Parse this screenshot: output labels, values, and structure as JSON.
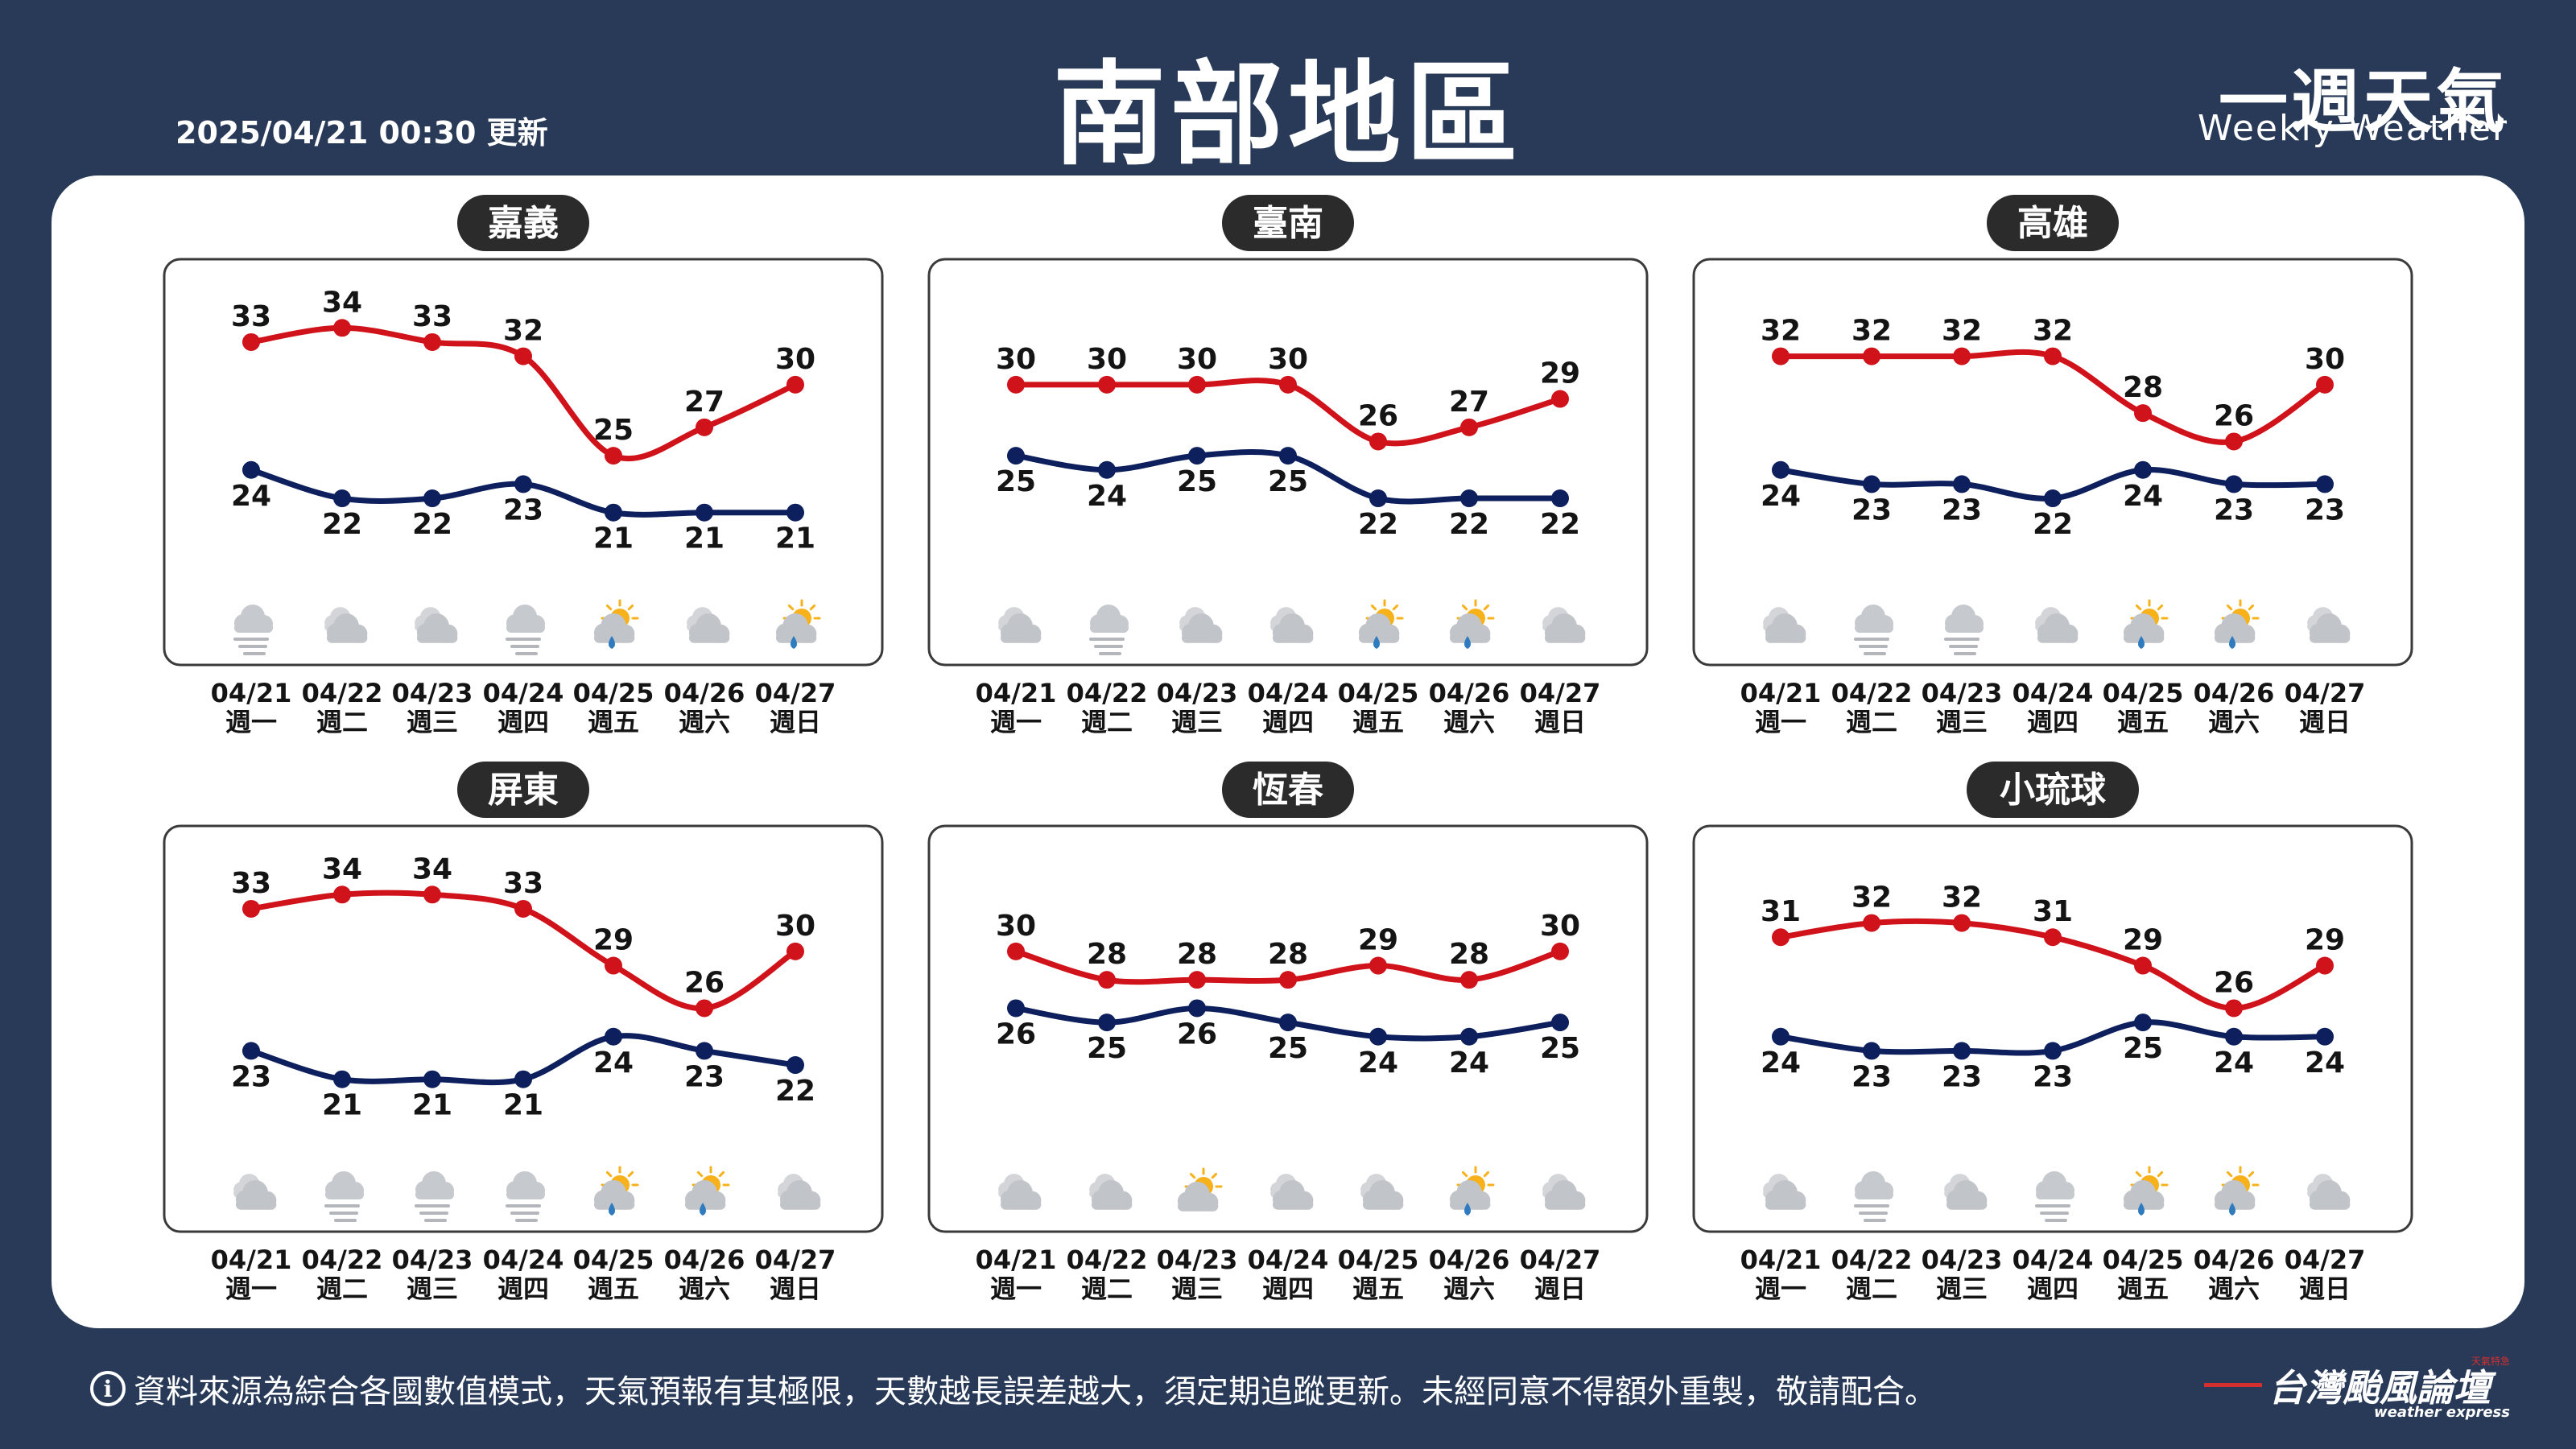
{
  "header": {
    "title": "南部地區",
    "update_time": "2025/04/21 00:30 更新",
    "brand_zh": "一週天氣",
    "brand_en": "Weekly Weather"
  },
  "footer": {
    "note": "資料來源為綜合各國數值模式，天氣預報有其極限，天數越長誤差越大，須定期追蹤更新。未經同意不得額外重製，敬請配合。",
    "logo_zh": "台灣颱風論壇",
    "logo_en": "weather express",
    "logo_tag": "天氣特急"
  },
  "colors": {
    "high": "#d0121b",
    "low": "#0d1f5c",
    "background": "#283a58",
    "label_bg": "#2b2b2b"
  },
  "chart_data": {
    "type": "line",
    "title": "南部地區 一週天氣",
    "x": [
      "04/21",
      "04/22",
      "04/23",
      "04/24",
      "04/25",
      "04/26",
      "04/27"
    ],
    "weekdays": [
      "週一",
      "週二",
      "週三",
      "週四",
      "週五",
      "週六",
      "週日"
    ],
    "ylim": [
      15,
      40
    ],
    "cities": [
      {
        "name": "嘉義",
        "series": [
          {
            "name": "high",
            "values": [
              33,
              34,
              33,
              32,
              25,
              27,
              30
            ]
          },
          {
            "name": "low",
            "values": [
              24,
              22,
              22,
              23,
              21,
              21,
              21
            ]
          }
        ],
        "icons": [
          "fog-icon",
          "cloudy-icon",
          "cloudy-icon",
          "fog-icon",
          "sun-rain-icon",
          "cloudy-icon",
          "sun-rain-icon"
        ]
      },
      {
        "name": "臺南",
        "series": [
          {
            "name": "high",
            "values": [
              30,
              30,
              30,
              30,
              26,
              27,
              29
            ]
          },
          {
            "name": "low",
            "values": [
              25,
              24,
              25,
              25,
              22,
              22,
              22
            ]
          }
        ],
        "icons": [
          "cloudy-icon",
          "fog-icon",
          "cloudy-icon",
          "cloudy-icon",
          "sun-rain-icon",
          "sun-rain-icon",
          "cloudy-icon"
        ]
      },
      {
        "name": "高雄",
        "series": [
          {
            "name": "high",
            "values": [
              32,
              32,
              32,
              32,
              28,
              26,
              30
            ]
          },
          {
            "name": "low",
            "values": [
              24,
              23,
              23,
              22,
              24,
              23,
              23
            ]
          }
        ],
        "icons": [
          "cloudy-icon",
          "fog-icon",
          "fog-icon",
          "cloudy-icon",
          "sun-rain-icon",
          "sun-rain-icon",
          "cloudy-icon"
        ]
      },
      {
        "name": "屏東",
        "series": [
          {
            "name": "high",
            "values": [
              33,
              34,
              34,
              33,
              29,
              26,
              30
            ]
          },
          {
            "name": "low",
            "values": [
              23,
              21,
              21,
              21,
              24,
              23,
              22
            ]
          }
        ],
        "icons": [
          "cloudy-icon",
          "fog-icon",
          "fog-icon",
          "fog-icon",
          "sun-rain-icon",
          "sun-rain-icon",
          "cloudy-icon"
        ]
      },
      {
        "name": "恆春",
        "series": [
          {
            "name": "high",
            "values": [
              30,
              28,
              28,
              28,
              29,
              28,
              30
            ]
          },
          {
            "name": "low",
            "values": [
              26,
              25,
              26,
              25,
              24,
              24,
              25
            ]
          }
        ],
        "icons": [
          "cloudy-icon",
          "cloudy-icon",
          "sun-cloud-icon",
          "cloudy-icon",
          "cloudy-icon",
          "sun-rain-icon",
          "cloudy-icon"
        ]
      },
      {
        "name": "小琉球",
        "series": [
          {
            "name": "high",
            "values": [
              31,
              32,
              32,
              31,
              29,
              26,
              29
            ]
          },
          {
            "name": "low",
            "values": [
              24,
              23,
              23,
              23,
              25,
              24,
              24
            ]
          }
        ],
        "icons": [
          "cloudy-icon",
          "fog-icon",
          "cloudy-icon",
          "fog-icon",
          "sun-rain-icon",
          "sun-rain-icon",
          "cloudy-icon"
        ]
      }
    ]
  }
}
